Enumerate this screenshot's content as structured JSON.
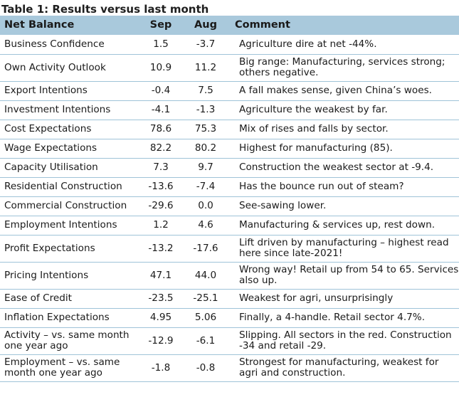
{
  "title": "Table 1: Results versus last month",
  "headers": {
    "label": "Net Balance",
    "sep": "Sep",
    "aug": "Aug",
    "comment": "Comment"
  },
  "rows": [
    {
      "label": "Business Confidence",
      "sep": "1.5",
      "aug": "-3.7",
      "comment": "Agriculture dire at net -44%."
    },
    {
      "label": "Own Activity Outlook",
      "sep": "10.9",
      "aug": "11.2",
      "comment": "Big range: Manufacturing, services strong; others negative."
    },
    {
      "label": "Export Intentions",
      "sep": "-0.4",
      "aug": "7.5",
      "comment": "A fall makes sense, given China’s woes."
    },
    {
      "label": "Investment Intentions",
      "sep": "-4.1",
      "aug": "-1.3",
      "comment": "Agriculture the weakest by far."
    },
    {
      "label": "Cost Expectations",
      "sep": "78.6",
      "aug": "75.3",
      "comment": "Mix of rises and falls by sector."
    },
    {
      "label": "Wage Expectations",
      "sep": "82.2",
      "aug": "80.2",
      "comment": "Highest for manufacturing (85)."
    },
    {
      "label": "Capacity Utilisation",
      "sep": "7.3",
      "aug": "9.7",
      "comment": "Construction the weakest sector at -9.4."
    },
    {
      "label": "Residential Construction",
      "sep": "-13.6",
      "aug": "-7.4",
      "comment": "Has the bounce run out of steam?"
    },
    {
      "label": "Commercial Construction",
      "sep": "-29.6",
      "aug": "0.0",
      "comment": "See-sawing lower."
    },
    {
      "label": "Employment Intentions",
      "sep": "1.2",
      "aug": "4.6",
      "comment": "Manufacturing & services up, rest down."
    },
    {
      "label": "Profit Expectations",
      "sep": "-13.2",
      "aug": "-17.6",
      "comment": "Lift driven by manufacturing – highest read here since late-2021!"
    },
    {
      "label": "Pricing Intentions",
      "sep": "47.1",
      "aug": "44.0",
      "comment": "Wrong way! Retail up from 54 to 65. Services also up."
    },
    {
      "label": "Ease of Credit",
      "sep": "-23.5",
      "aug": "-25.1",
      "comment": "Weakest for agri, unsurprisingly"
    },
    {
      "label": "Inflation Expectations",
      "sep": "4.95",
      "aug": "5.06",
      "comment": "Finally, a 4-handle. Retail sector 4.7%."
    },
    {
      "label": "Activity – vs. same month one year ago",
      "sep": "-12.9",
      "aug": "-6.1",
      "comment": "Slipping. All sectors in the red. Construction -34 and retail -29."
    },
    {
      "label": "Employment – vs. same month one year ago",
      "sep": "-1.8",
      "aug": "-0.8",
      "comment": "Strongest for manufacturing, weakest for agri and construction."
    }
  ]
}
